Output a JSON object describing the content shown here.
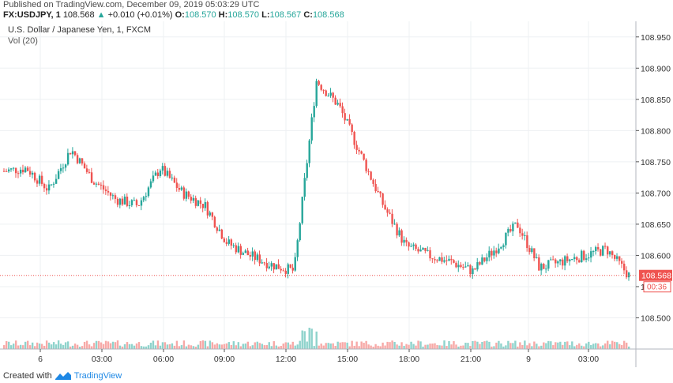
{
  "header": {
    "published": "Published on TradingView.com, December 09, 2019 05:03:29 UTC",
    "symbol": "FX:USDJPY, 1",
    "last": "108.568",
    "change_arrow": "▲",
    "change": "+0.010 (+0.01%)",
    "o_label": "O:",
    "o_value": "108.570",
    "h_label": "H:",
    "h_value": "108.570",
    "l_label": "L:",
    "l_value": "108.567",
    "c_label": "C:",
    "c_value": "108.568"
  },
  "legend": {
    "instrument": "U.S. Dollar / Japanese Yen, 1, FXCM",
    "volume_study": "Vol (20)"
  },
  "price_badge": {
    "value": "108.568",
    "countdown": "00:36",
    "color": "#ef5350"
  },
  "footer": {
    "created_with": "Created with",
    "brand": "TradingView",
    "logo": "tradingview-logo-icon"
  },
  "colors": {
    "up": "#26a69a",
    "down": "#ef5350",
    "grid": "#eef0f3",
    "axis": "#555555",
    "vol_up": "#8fd3cc",
    "vol_down": "#f7a9a7"
  },
  "chart_data": {
    "type": "line",
    "style": "candlestick",
    "ylim": [
      108.45,
      108.975
    ],
    "y_ticks": [
      "108.500",
      "108.550",
      "108.600",
      "108.650",
      "108.700",
      "108.750",
      "108.800",
      "108.850",
      "108.900",
      "108.950"
    ],
    "x_ticks": [
      "6",
      "03:00",
      "06:00",
      "09:00",
      "12:00",
      "15:00",
      "18:00",
      "21:00",
      "9",
      "03:00"
    ],
    "current_price": 108.568,
    "series": [
      {
        "x": [
          "6 00:00",
          "6 01:00",
          "6 02:00",
          "6 03:00",
          "6 04:00",
          "6 05:00",
          "6 06:00",
          "6 07:00",
          "6 08:00",
          "6 09:00",
          "6 10:00",
          "6 11:00",
          "6 12:00",
          "6 13:00",
          "6 14:00",
          "6 15:00",
          "6 16:00",
          "6 17:00",
          "6 18:00",
          "6 19:00",
          "6 20:00",
          "6 21:00",
          "6 22:00",
          "9 00:00",
          "9 01:00",
          "9 02:00",
          "9 03:00",
          "9 04:00",
          "9 05:00"
        ],
        "values": [
          108.735,
          108.74,
          108.705,
          108.77,
          108.72,
          108.69,
          108.68,
          108.74,
          108.7,
          108.68,
          108.62,
          108.6,
          108.585,
          108.575,
          108.88,
          108.84,
          108.76,
          108.68,
          108.615,
          108.6,
          108.59,
          108.575,
          108.61,
          108.65,
          108.58,
          108.59,
          108.6,
          108.61,
          108.568
        ]
      }
    ]
  }
}
